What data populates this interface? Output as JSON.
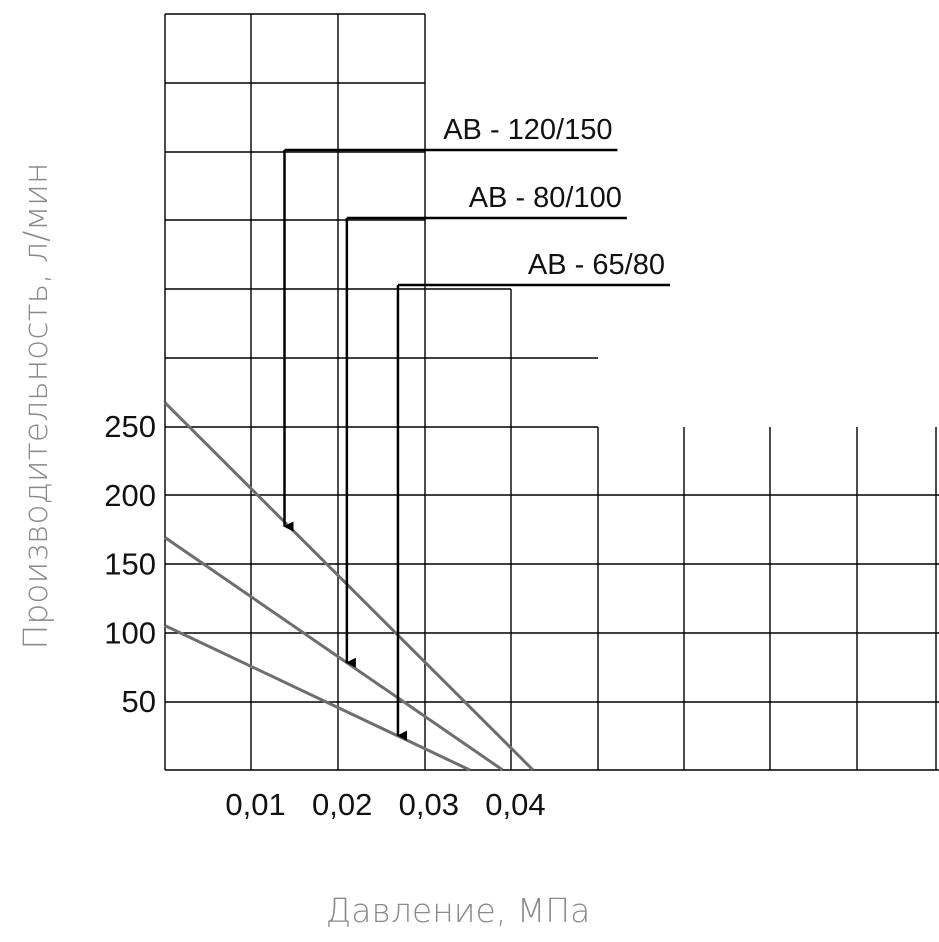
{
  "chart_data": {
    "type": "line",
    "xlabel": "Давление, МПа",
    "ylabel": "Производительность, л/мин",
    "xlim": [
      0,
      0.045
    ],
    "ylim": [
      0,
      275
    ],
    "x_ticks": [
      0.01,
      0.02,
      0.03,
      0.04
    ],
    "x_tick_labels": [
      "0,01",
      "0,02",
      "0,03",
      "0,04"
    ],
    "y_ticks": [
      50,
      100,
      150,
      200,
      250
    ],
    "y_tick_labels": [
      "50",
      "100",
      "150",
      "200",
      "250"
    ],
    "grid": true,
    "series": [
      {
        "name": "АВ - 120/150",
        "x": [
          0,
          0.0425
        ],
        "y": [
          267,
          0
        ]
      },
      {
        "name": "АВ - 80/100",
        "x": [
          0,
          0.039
        ],
        "y": [
          169,
          0
        ]
      },
      {
        "name": "АВ - 65/80",
        "x": [
          0,
          0.0352
        ],
        "y": [
          105,
          0
        ]
      }
    ],
    "annotations": [
      {
        "text": "АВ - 120/150",
        "points_to": {
          "x": 0.0138,
          "y": 177
        }
      },
      {
        "text": "АВ - 80/100",
        "points_to": {
          "x": 0.021,
          "y": 78
        }
      },
      {
        "text": "АВ - 65/80",
        "points_to": {
          "x": 0.0269,
          "y": 25
        }
      }
    ],
    "colors": {
      "series_line": "#6e6e6e",
      "grid": "#000000",
      "callout": "#000000"
    }
  }
}
